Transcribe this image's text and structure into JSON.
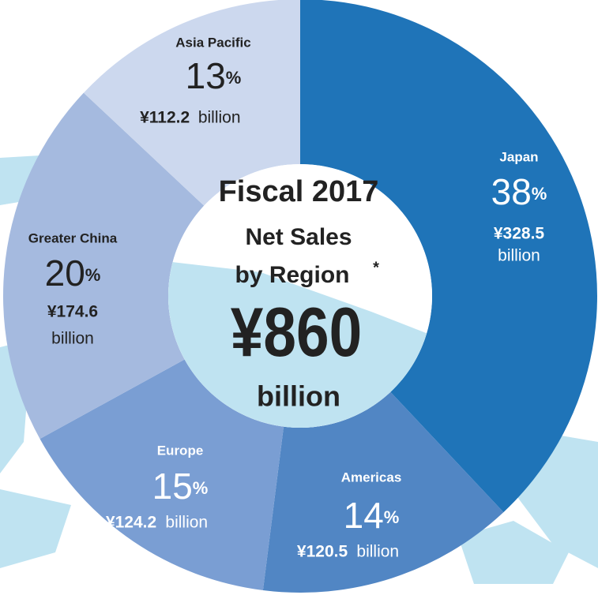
{
  "chart_data": {
    "type": "donut",
    "title": "Fiscal 2017",
    "subtitle": [
      "Net Sales",
      "by Region"
    ],
    "footnote_mark": "*",
    "total_label": "¥860",
    "total_unit": "billion",
    "categories": [
      "Japan",
      "Americas",
      "Europe",
      "Greater China",
      "Asia Pacific"
    ],
    "values": [
      38,
      14,
      15,
      20,
      13
    ],
    "value_labels": [
      "38%",
      "14%",
      "15%",
      "20%",
      "13%"
    ],
    "amount_labels": [
      "¥328.5",
      "¥120.5",
      "¥124.2",
      "¥174.6",
      "¥112.2"
    ],
    "amount_unit": "billion",
    "colors": [
      "#1f74b8",
      "#5186c4",
      "#7a9ed3",
      "#a5badf",
      "#ccd8ee"
    ]
  }
}
